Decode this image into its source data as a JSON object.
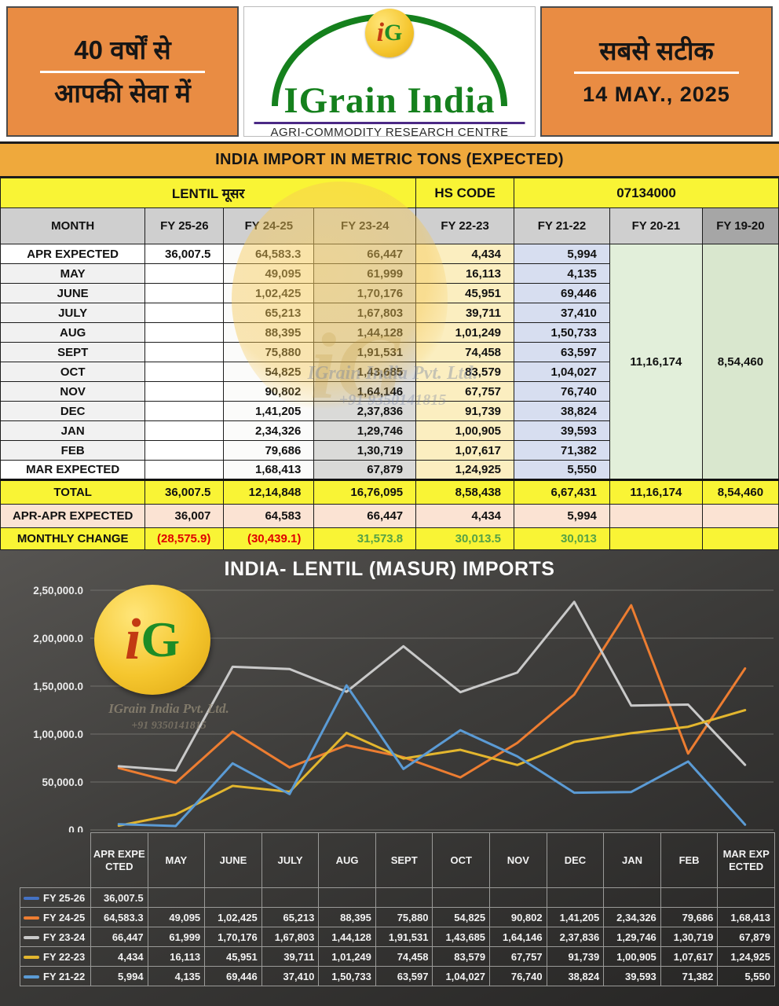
{
  "banner": {
    "left_line1": "40 वर्षों से",
    "left_line2": "आपकी सेवा में",
    "monogram_i": "i",
    "monogram_g": "G",
    "brand": "IGrain India",
    "subtitle": "AGRI-COMMODITY RESEARCH CENTRE",
    "right_tagline": "सबसे सटीक",
    "date": "14 MAY., 2025"
  },
  "title_bar": "INDIA IMPORT IN METRIC TONS (EXPECTED)",
  "subheader": {
    "commodity": "LENTIL मूसर",
    "hs_label": "HS CODE",
    "hs_code": "07134000"
  },
  "table": {
    "columns": [
      "MONTH",
      "FY 25-26",
      "FY 24-25",
      "FY 23-24",
      "FY 22-23",
      "FY 21-22",
      "FY 20-21",
      "FY 19-20"
    ],
    "rows": [
      {
        "month": "APR  EXPECTED",
        "values": [
          "36,007.5",
          "64,583.3",
          "66,447",
          "4,434",
          "5,994"
        ]
      },
      {
        "month": "MAY",
        "values": [
          "",
          "49,095",
          "61,999",
          "16,113",
          "4,135"
        ]
      },
      {
        "month": "JUNE",
        "values": [
          "",
          "1,02,425",
          "1,70,176",
          "45,951",
          "69,446"
        ]
      },
      {
        "month": "JULY",
        "values": [
          "",
          "65,213",
          "1,67,803",
          "39,711",
          "37,410"
        ]
      },
      {
        "month": "AUG",
        "values": [
          "",
          "88,395",
          "1,44,128",
          "1,01,249",
          "1,50,733"
        ]
      },
      {
        "month": "SEPT",
        "values": [
          "",
          "75,880",
          "1,91,531",
          "74,458",
          "63,597"
        ]
      },
      {
        "month": "OCT",
        "values": [
          "",
          "54,825",
          "1,43,685",
          "83,579",
          "1,04,027"
        ]
      },
      {
        "month": "NOV",
        "values": [
          "",
          "90,802",
          "1,64,146",
          "67,757",
          "76,740"
        ]
      },
      {
        "month": "DEC",
        "values": [
          "",
          "1,41,205",
          "2,37,836",
          "91,739",
          "38,824"
        ]
      },
      {
        "month": "JAN",
        "values": [
          "",
          "2,34,326",
          "1,29,746",
          "1,00,905",
          "39,593"
        ]
      },
      {
        "month": "FEB",
        "values": [
          "",
          "79,686",
          "1,30,719",
          "1,07,617",
          "71,382"
        ]
      },
      {
        "month": "MAR  EXPECTED",
        "values": [
          "",
          "1,68,413",
          "67,879",
          "1,24,925",
          "5,550"
        ]
      }
    ],
    "fy2021_merged": "11,16,174",
    "fy1920_merged": "8,54,460",
    "total_row": {
      "label": "TOTAL",
      "values": [
        "36,007.5",
        "12,14,848",
        "16,76,095",
        "8,58,438",
        "6,67,431",
        "11,16,174",
        "8,54,460"
      ]
    },
    "apr_apr_row": {
      "label": "APR-APR EXPECTED",
      "values": [
        "36,007",
        "64,583",
        "66,447",
        "4,434",
        "5,994",
        "",
        ""
      ]
    },
    "monthly_change_row": {
      "label": "MONTHLY CHANGE",
      "values": [
        "(28,575.9)",
        "(30,439.1)",
        "31,573.8",
        "30,013.5",
        "30,013",
        "",
        ""
      ],
      "colors": [
        "#e00000",
        "#e00000",
        "#55a146",
        "#55a146",
        "#55a146",
        "",
        ""
      ]
    }
  },
  "watermark": {
    "company": "IGrain India Pvt. Ltd.",
    "phone": "+91 9350141815"
  },
  "chart_data": {
    "type": "line",
    "title": "INDIA- LENTIL (MASUR) IMPORTS",
    "categories": [
      "APR EXPECTED",
      "MAY",
      "JUNE",
      "JULY",
      "AUG",
      "SEPT",
      "OCT",
      "NOV",
      "DEC",
      "JAN",
      "FEB",
      "MAR EXPECTED"
    ],
    "ylim": [
      0,
      250000
    ],
    "ytick_labels": [
      "0.0",
      "50,000.0",
      "1,00,000.0",
      "1,50,000.0",
      "2,00,000.0",
      "2,50,000.0"
    ],
    "grid": "horizontal",
    "legend_position": "table-left",
    "series": [
      {
        "name": "FY 25-26",
        "color": "#4472c4",
        "values": [
          36007.5,
          null,
          null,
          null,
          null,
          null,
          null,
          null,
          null,
          null,
          null,
          null
        ],
        "labels": [
          "36,007.5",
          "",
          "",
          "",
          "",
          "",
          "",
          "",
          "",
          "",
          "",
          ""
        ]
      },
      {
        "name": "FY 24-25",
        "color": "#ed7d31",
        "values": [
          64583.3,
          49095,
          102425,
          65213,
          88395,
          75880,
          54825,
          90802,
          141205,
          234326,
          79686,
          168413
        ],
        "labels": [
          "64,583.3",
          "49,095",
          "1,02,425",
          "65,213",
          "88,395",
          "75,880",
          "54,825",
          "90,802",
          "1,41,205",
          "2,34,326",
          "79,686",
          "1,68,413"
        ]
      },
      {
        "name": "FY 23-24",
        "color": "#c9c9c9",
        "values": [
          66447,
          61999,
          170176,
          167803,
          144128,
          191531,
          143685,
          164146,
          237836,
          129746,
          130719,
          67879
        ],
        "labels": [
          "66,447",
          "61,999",
          "1,70,176",
          "1,67,803",
          "1,44,128",
          "1,91,531",
          "1,43,685",
          "1,64,146",
          "2,37,836",
          "1,29,746",
          "1,30,719",
          "67,879"
        ]
      },
      {
        "name": "FY 22-23",
        "color": "#e3b62e",
        "values": [
          4434,
          16113,
          45951,
          39711,
          101249,
          74458,
          83579,
          67757,
          91739,
          100905,
          107617,
          124925
        ],
        "labels": [
          "4,434",
          "16,113",
          "45,951",
          "39,711",
          "1,01,249",
          "74,458",
          "83,579",
          "67,757",
          "91,739",
          "1,00,905",
          "1,07,617",
          "1,24,925"
        ]
      },
      {
        "name": "FY 21-22",
        "color": "#5b9bd5",
        "values": [
          5994,
          4135,
          69446,
          37410,
          150733,
          63597,
          104027,
          76740,
          38824,
          39593,
          71382,
          5550
        ],
        "labels": [
          "5,994",
          "4,135",
          "69,446",
          "37,410",
          "1,50,733",
          "63,597",
          "1,04,027",
          "76,740",
          "38,824",
          "39,593",
          "71,382",
          "5,550"
        ]
      }
    ]
  },
  "colors": {
    "banner_orange": "#e98c43",
    "title_bar_orange": "#efa93c",
    "highlight_yellow": "#f9f435",
    "col_fy2324": "#dadad8",
    "col_fy2223": "#fbeec0",
    "col_fy2122": "#d7def0",
    "col_fy2021": "#e2efda",
    "col_fy1920": "#d9e7ce",
    "row_apr_apr": "#fbe3d3",
    "negative_red": "#e00000",
    "positive_green": "#55a146",
    "brand_green": "#15801d",
    "logo_yellow": "#f5c62e",
    "purple_rule": "#4c2a86",
    "chart_bg": "#3d3c3a"
  }
}
